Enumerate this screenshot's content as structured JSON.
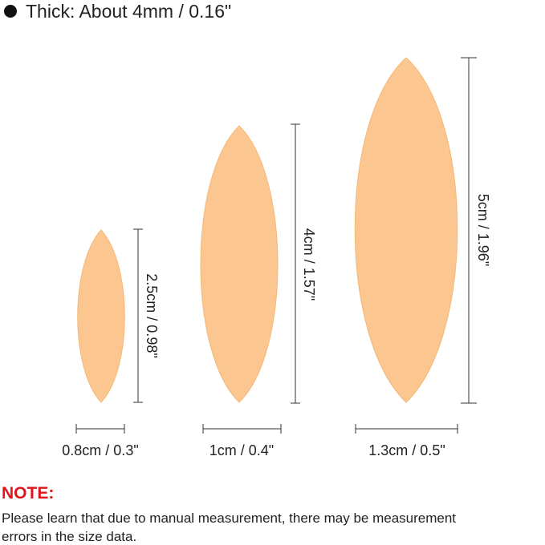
{
  "header": {
    "text": "Thick: About 4mm / 0.16\""
  },
  "items": [
    {
      "height": "2.5cm / 0.98\"",
      "width": "0.8cm / 0.3\""
    },
    {
      "height": "4cm / 1.57\"",
      "width": "1cm / 0.4\""
    },
    {
      "height": "5cm / 1.96\"",
      "width": "1.3cm / 0.5\""
    }
  ],
  "note": {
    "title": "NOTE:",
    "lines": [
      "Please learn that due to manual measurement, there may be measurement",
      "errors in the size data."
    ]
  }
}
